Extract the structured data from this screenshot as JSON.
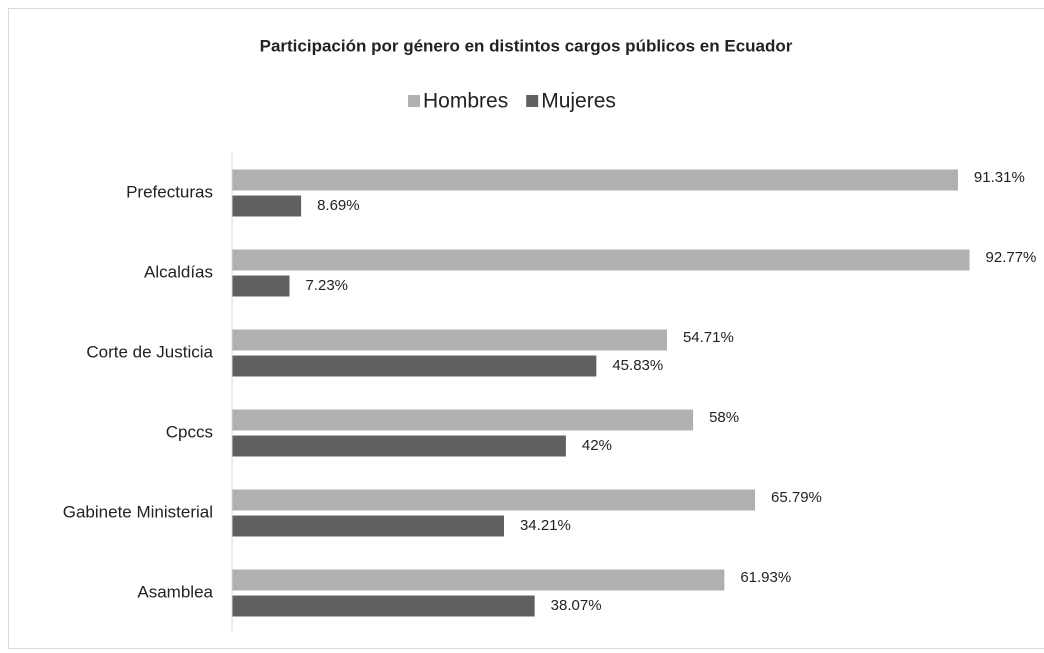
{
  "chart_data": {
    "type": "hbar",
    "title": "Participación por género en distintos cargos públicos en Ecuador",
    "categories": [
      "Prefecturas",
      "Alcaldías",
      "Corte de Justicia",
      "Cpccs",
      "Gabinete Ministerial",
      "Asamblea"
    ],
    "series": [
      {
        "name": "Hombres",
        "color": "#b0b0b0",
        "values": [
          91.31,
          92.77,
          54.71,
          58,
          65.79,
          61.93
        ],
        "value_labels": [
          "91.31%",
          "92.77%",
          "54.71%",
          "58%",
          "65.79%",
          "61.93%"
        ]
      },
      {
        "name": "Mujeres",
        "color": "#606060",
        "values": [
          8.69,
          7.23,
          45.83,
          42,
          34.21,
          38.07
        ],
        "value_labels": [
          "8.69%",
          "7.23%",
          "45.83%",
          "42%",
          "34.21%",
          "38.07%"
        ]
      }
    ],
    "xlim": [
      0,
      100
    ],
    "legend": "top"
  }
}
